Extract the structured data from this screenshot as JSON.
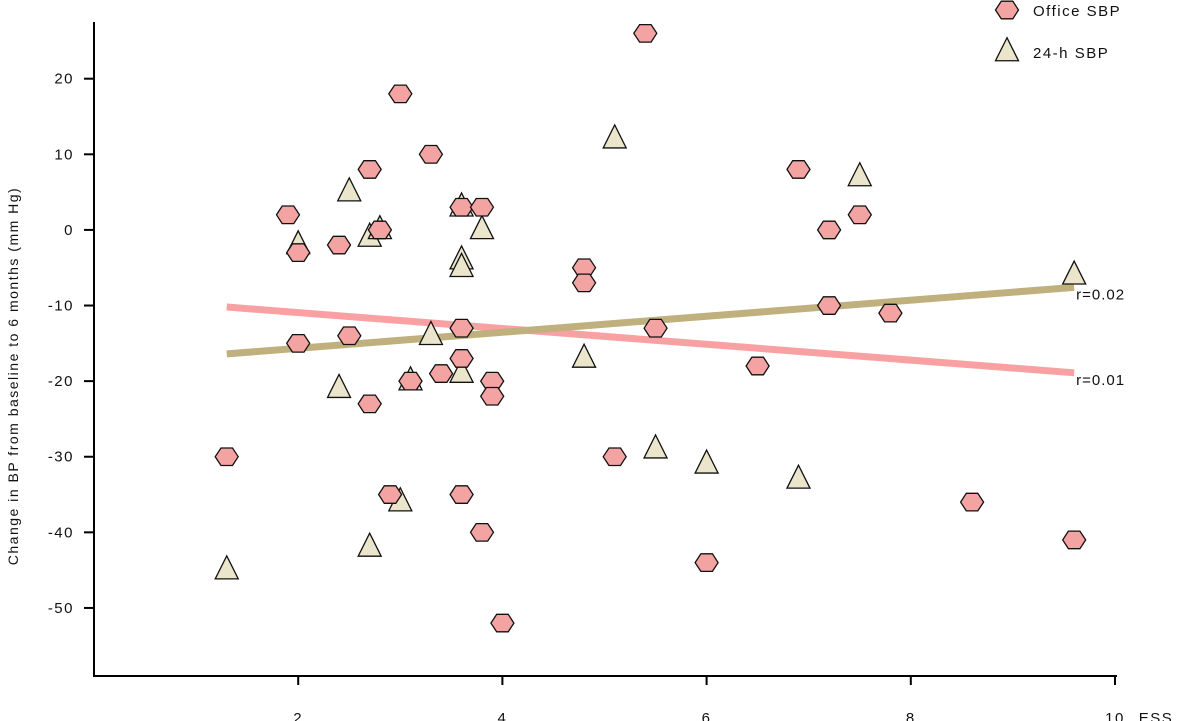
{
  "chart_data": {
    "type": "scatter",
    "title": "",
    "xlabel": "ESS",
    "ylabel": "Change in BP from baseline to 6 months (mm Hg)",
    "xlim": [
      0,
      10
    ],
    "ylim": [
      -59,
      27.5
    ],
    "xticks": [
      2,
      4,
      6,
      8,
      10
    ],
    "yticks": [
      20,
      10,
      0,
      -10,
      -20,
      -30,
      -40,
      -50
    ],
    "grid": false,
    "legend": "top-right",
    "series": [
      {
        "name": "Office SBP",
        "marker": "hexagon",
        "color": "#f4a3a3",
        "points": [
          [
            1.3,
            -30
          ],
          [
            1.9,
            2
          ],
          [
            2.0,
            -3
          ],
          [
            2.0,
            -15
          ],
          [
            2.4,
            -2
          ],
          [
            2.5,
            -14
          ],
          [
            2.7,
            8
          ],
          [
            2.7,
            -23
          ],
          [
            2.8,
            0
          ],
          [
            2.9,
            -35
          ],
          [
            3.0,
            18
          ],
          [
            3.1,
            -20
          ],
          [
            3.3,
            10
          ],
          [
            3.4,
            -19
          ],
          [
            3.6,
            3
          ],
          [
            3.6,
            -13
          ],
          [
            3.6,
            -17
          ],
          [
            3.6,
            -35
          ],
          [
            3.8,
            3
          ],
          [
            3.8,
            -40
          ],
          [
            3.9,
            -20
          ],
          [
            3.9,
            -22
          ],
          [
            4.0,
            -52
          ],
          [
            4.8,
            -5
          ],
          [
            4.8,
            -7
          ],
          [
            5.1,
            -30
          ],
          [
            5.4,
            26
          ],
          [
            5.5,
            -13
          ],
          [
            6.0,
            -44
          ],
          [
            6.5,
            -18
          ],
          [
            6.9,
            8
          ],
          [
            7.2,
            0
          ],
          [
            7.2,
            -10
          ],
          [
            7.5,
            2
          ],
          [
            7.8,
            -11
          ],
          [
            8.6,
            -36
          ],
          [
            9.6,
            -41
          ]
        ],
        "trend": {
          "x": [
            1.3,
            9.6
          ],
          "y": [
            -10.2,
            -18.9
          ],
          "color": "#f9a0a3",
          "label": "r=0.01"
        }
      },
      {
        "name": "24-h SBP",
        "marker": "triangle",
        "color": "#ebe5cc",
        "points": [
          [
            1.3,
            -45
          ],
          [
            2.0,
            -2
          ],
          [
            2.4,
            -21
          ],
          [
            2.5,
            5
          ],
          [
            2.7,
            -1
          ],
          [
            2.8,
            0
          ],
          [
            2.7,
            -42
          ],
          [
            3.0,
            -36
          ],
          [
            3.1,
            -20
          ],
          [
            3.3,
            -14
          ],
          [
            3.6,
            3
          ],
          [
            3.6,
            -4
          ],
          [
            3.6,
            -5
          ],
          [
            3.6,
            -19
          ],
          [
            3.8,
            0
          ],
          [
            4.8,
            -17
          ],
          [
            5.1,
            12
          ],
          [
            5.5,
            -29
          ],
          [
            6.0,
            -31
          ],
          [
            6.9,
            -33
          ],
          [
            7.5,
            7
          ],
          [
            9.6,
            -6
          ]
        ],
        "trend": {
          "x": [
            1.3,
            9.6
          ],
          "y": [
            -16.4,
            -7.6
          ],
          "color": "#bfb07e",
          "label": "r=0.02"
        }
      }
    ]
  }
}
